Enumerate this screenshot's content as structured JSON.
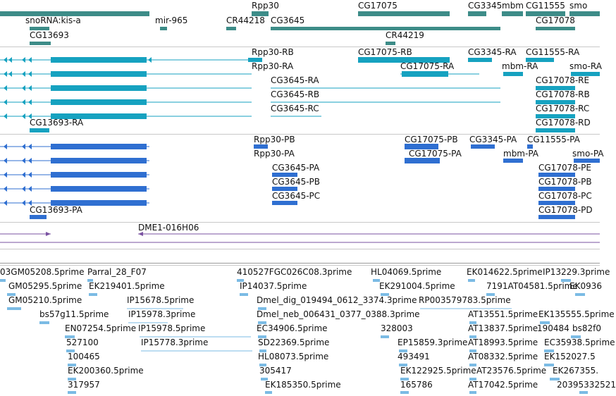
{
  "colors": {
    "gene_track": "#3d8c88",
    "transcript_track": "#16a2c0",
    "protein_track": "#2f6fd1",
    "clone_track": "#7a52a2",
    "est_track": "#7bbbe4",
    "separator": "#c8c8c8"
  },
  "tracks": {
    "genes": {
      "labels": [
        "Rpp30",
        "CG17075",
        "CG3345",
        "mbm",
        "CG11555",
        "smo",
        "snoRNA:kis-a",
        "mir-965",
        "CR44218",
        "CG3645",
        "CG17078",
        "CG13693",
        "CR44219"
      ]
    },
    "transcripts": {
      "labels": [
        "Rpp30-RB",
        "CG17075-RB",
        "CG3345-RA",
        "CG11555-RA",
        "Rpp30-RA",
        "CG17075-RA",
        "mbm-RA",
        "smo-RA",
        "CG3645-RA",
        "CG17078-RE",
        "CG3645-RB",
        "CG17078-RB",
        "CG3645-RC",
        "CG17078-RC",
        "CG13693-RA",
        "CG17078-RD"
      ]
    },
    "proteins": {
      "labels": [
        "Rpp30-PB",
        "CG17075-PB",
        "CG3345-PA",
        "CG11555-PA",
        "Rpp30-PA",
        "CG17075-PA",
        "mbm-PA",
        "smo-PA",
        "CG3645-PA",
        "CG17078-PE",
        "CG3645-PB",
        "CG17078-PB",
        "CG3645-PC",
        "CG17078-PC",
        "CG13693-PA",
        "CG17078-PD"
      ]
    },
    "clones": {
      "labels": [
        "DME1-016H06"
      ]
    },
    "ests": {
      "labels": [
        "03GM05208.5prime",
        "Parral_28_F07",
        "410527FGC026C08.3prime",
        "HL04069.5prime",
        "EK014622.5prime",
        "IP13229.3prime",
        "GM05295.5prime",
        "EK219401.5prime",
        "IP14037.5prime",
        "EK291004.5prime",
        "7191AT04581.5prime",
        "EK0936",
        "GM05210.5prime",
        "IP15678.5prime",
        "Dmel_dig_019494_0612_3374.3prime",
        "RP003579783.5prime",
        "bs57g11.5prime",
        "IP15978.3prime",
        "Dmel_neb_006431_0377_0388.3prime",
        "AT13551.5prime",
        "EK135555.5prime",
        "EN07254.5prime",
        "IP15978.5prime",
        "EC34906.5prime",
        "328003",
        "AT13837.5prime",
        "190484",
        "bs82f0",
        "527100",
        "IP15778.3prime",
        "SD22369.5prime",
        "EP15859.3prime",
        "AT18993.5prime",
        "EC35938.5prime",
        "100465",
        "HL08073.5prime",
        "493491",
        "AT08332.5prime",
        "EK152027.5",
        "EK200360.5prime",
        "305417",
        "EK122925.5prime",
        "AT23576.5prime",
        "EK267355.",
        "317957",
        "EK185350.5prime",
        "165786",
        "AT17042.5prime",
        "20395332521"
      ]
    }
  }
}
